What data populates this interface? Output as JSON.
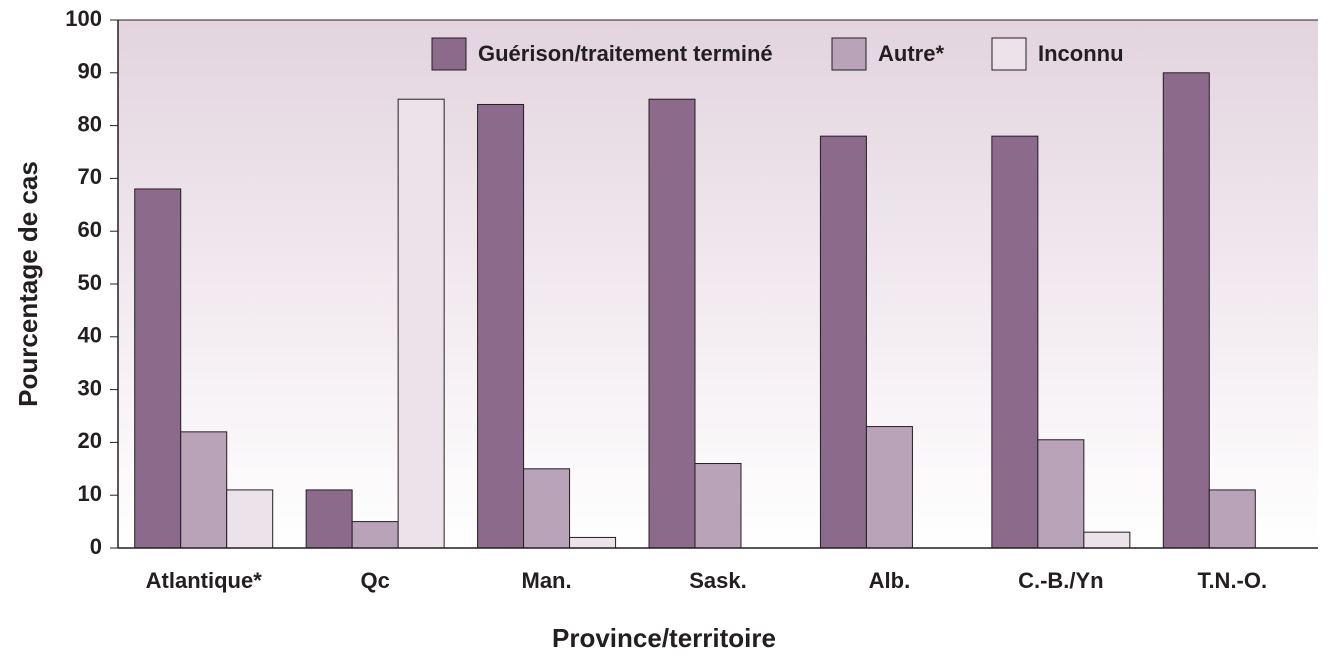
{
  "chart_data": {
    "type": "bar",
    "x_label": "Province/territoire",
    "y_label": "Pourcentage de cas",
    "categories": [
      "Atlantique*",
      "Qc",
      "Man.",
      "Sask.",
      "Alb.",
      "C.-B./Yn",
      "T.N.-O."
    ],
    "series": [
      {
        "name": "Guérison/traitement terminé",
        "color": "#8c6a8b",
        "values": [
          68,
          11,
          84,
          85,
          78,
          78,
          90
        ]
      },
      {
        "name": "Autre*",
        "color": "#b9a3b8",
        "values": [
          22,
          5,
          15,
          16,
          23,
          20.5,
          11
        ]
      },
      {
        "name": "Inconnu",
        "color": "#ece3ea",
        "values": [
          11,
          85,
          2,
          null,
          null,
          3,
          null
        ]
      }
    ],
    "ylim": [
      0,
      100
    ],
    "yticks": [
      0,
      10,
      20,
      30,
      40,
      50,
      60,
      70,
      80,
      90,
      100
    ],
    "legend": "top"
  }
}
